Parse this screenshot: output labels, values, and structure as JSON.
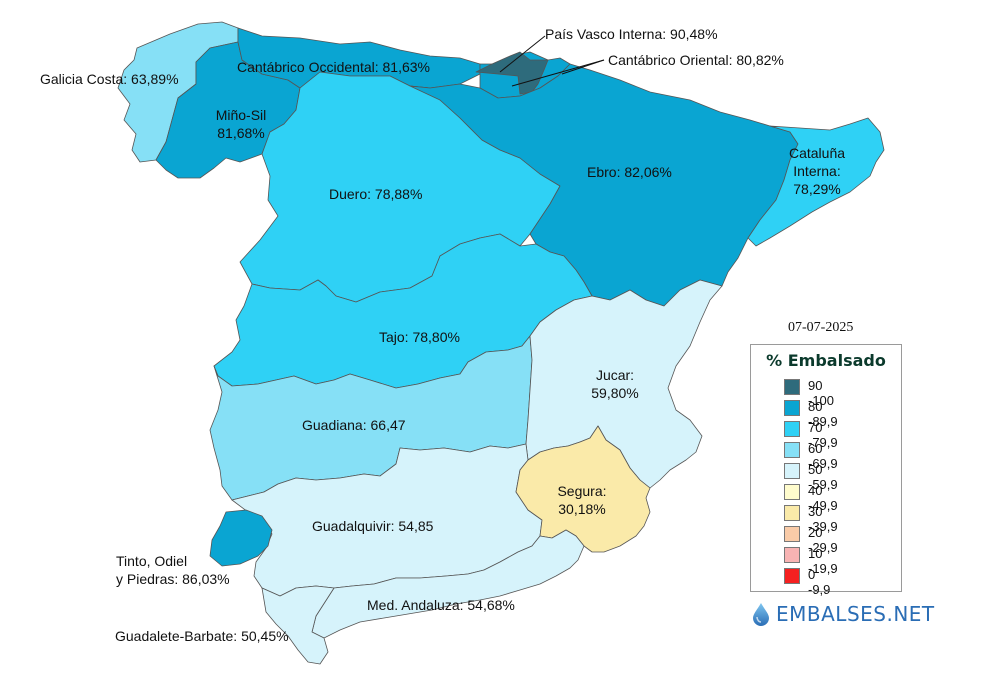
{
  "colors": {
    "c90": "#2e6b7c",
    "c80": "#0aa5d2",
    "c70": "#2fd1f5",
    "c60": "#86e0f6",
    "c50": "#d6f3fb",
    "c40": "#fffccd",
    "c30": "#faeaa9",
    "c20": "#f9cba8",
    "c10": "#f8b3b3",
    "c0": "#f52020",
    "border": "#555555"
  },
  "regions": [
    {
      "key": "galicia",
      "name": "Galicia Costa",
      "value": "63,89%",
      "text": "Galicia Costa: 63,89%",
      "fill": "c60"
    },
    {
      "key": "cantabrico_occ",
      "name": "Cantábrico Occidental",
      "value": "81,63%",
      "text": "Cantábrico Occidental: 81,63%",
      "fill": "c80"
    },
    {
      "key": "pais_vasco",
      "name": "País Vasco Interna",
      "value": "90,48%",
      "text": "País Vasco Interna: 90,48%",
      "fill": "c90"
    },
    {
      "key": "cantabrico_or",
      "name": "Cantábrico Oriental",
      "value": "80,82%",
      "text": "Cantábrico Oriental: 80,82%",
      "fill": "c80"
    },
    {
      "key": "mino_sil",
      "name": "Miño-Sil",
      "value": "81,68%",
      "text1": "Miño-Sil",
      "text2": "81,68%",
      "fill": "c80"
    },
    {
      "key": "duero",
      "name": "Duero",
      "value": "78,88%",
      "text": "Duero: 78,88%",
      "fill": "c70"
    },
    {
      "key": "ebro",
      "name": "Ebro",
      "value": "82,06%",
      "text": "Ebro: 82,06%",
      "fill": "c80"
    },
    {
      "key": "cataluna",
      "name": "Cataluña Interna",
      "value": "78,29%",
      "text1": "Cataluña",
      "text2": "Interna:",
      "text3": "78,29%",
      "fill": "c70"
    },
    {
      "key": "tajo",
      "name": "Tajo",
      "value": "78,80%",
      "text": "Tajo: 78,80%",
      "fill": "c70"
    },
    {
      "key": "jucar",
      "name": "Jucar",
      "value": "59,80%",
      "text1": "Jucar:",
      "text2": "59,80%",
      "fill": "c50"
    },
    {
      "key": "guadiana",
      "name": "Guadiana",
      "value": "66,47",
      "text": "Guadiana: 66,47",
      "fill": "c60"
    },
    {
      "key": "segura",
      "name": "Segura",
      "value": "30,18%",
      "text1": "Segura:",
      "text2": "30,18%",
      "fill": "c30"
    },
    {
      "key": "guadalquivir",
      "name": "Guadalquivir",
      "value": "54,85",
      "text": "Guadalquivir: 54,85",
      "fill": "c50"
    },
    {
      "key": "tinto",
      "name": "Tinto, Odiel y Piedras",
      "value": "86,03%",
      "text1": "Tinto, Odiel",
      "text2": "y Piedras: 86,03%",
      "fill": "c80"
    },
    {
      "key": "med_andaluza",
      "name": "Med. Andaluza",
      "value": "54,68%",
      "text": "Med. Andaluza: 54,68%",
      "fill": "c50"
    },
    {
      "key": "guadalete",
      "name": "Guadalete-Barbate",
      "value": "50,45%",
      "text": "Guadalete-Barbate: 50,45%",
      "fill": "c50"
    }
  ],
  "date": "07-07-2025",
  "legend": {
    "title": "% Embalsado",
    "items": [
      {
        "range": "90 -100",
        "color": "c90"
      },
      {
        "range": "80 -89,9",
        "color": "c80"
      },
      {
        "range": "70 -79,9",
        "color": "c70"
      },
      {
        "range": "60 -69,9",
        "color": "c60"
      },
      {
        "range": "50 -59,9",
        "color": "c50"
      },
      {
        "range": "40 -49,9",
        "color": "c40"
      },
      {
        "range": "30 -39,9",
        "color": "c30"
      },
      {
        "range": "20 -29,9",
        "color": "c20"
      },
      {
        "range": "10 -19,9",
        "color": "c10"
      },
      {
        "range": "0 -9,9",
        "color": "c0"
      }
    ]
  },
  "brand": {
    "name": "EMBALSES.NET",
    "icon": "water-drop-icon"
  }
}
